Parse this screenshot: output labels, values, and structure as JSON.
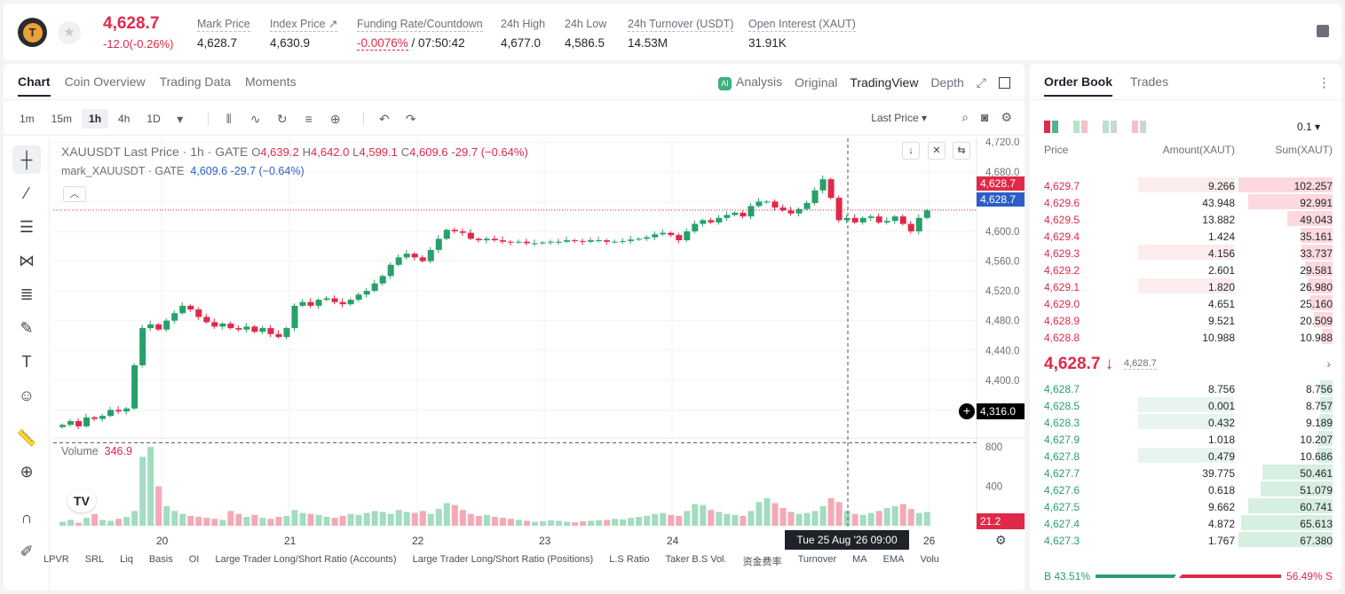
{
  "header": {
    "last_price": "4,628.7",
    "change": "-12.0(-0.26%)",
    "stats": [
      {
        "label": "Mark Price",
        "value": "4,628.7"
      },
      {
        "label": "Index Price ↗",
        "value": "4,630.9"
      },
      {
        "label": "Funding Rate/Countdown",
        "value": "-0.0076%",
        "value2": " / 07:50:42"
      },
      {
        "label": "24h High",
        "value": "4,677.0"
      },
      {
        "label": "24h Low",
        "value": "4,586.5"
      },
      {
        "label": "24h Turnover (USDT)",
        "value": "14.53M"
      },
      {
        "label": "Open Interest (XAUT)",
        "value": "31.91K"
      }
    ]
  },
  "chart_tabs": [
    "Chart",
    "Coin Overview",
    "Trading Data",
    "Moments"
  ],
  "view_tabs": {
    "analysis": "Analysis",
    "original": "Original",
    "tradingview": "TradingView",
    "depth": "Depth"
  },
  "timeframes": [
    "1m",
    "15m",
    "1h",
    "4h",
    "1D"
  ],
  "price_type": "Last Price",
  "legend": {
    "symbol": "XAUUSDT Last Price · 1h · GATE",
    "o_label": "O",
    "o": "4,639.2",
    "h_label": "H",
    "h": "4,642.0",
    "l_label": "L",
    "l": "4,599.1",
    "c_label": "C",
    "c": "4,609.6",
    "chg": "-29.7 (−0.64%)",
    "mark": "mark_XAUUSDT · GATE",
    "mark_vals": "4,609.6 -29.7 (−0.64%)"
  },
  "price_axis": [
    "4,720.0",
    "4,680.0",
    "4,640.0",
    "4,600.0",
    "4,560.0",
    "4,520.0",
    "4,480.0",
    "4,440.0",
    "4,400.0",
    "4,360.0"
  ],
  "tags": {
    "last": "4,628.7",
    "mark": "4,628.7",
    "cross": "4,316.0",
    "vol": "21.2"
  },
  "volume": {
    "label": "Volume",
    "value": "346.9",
    "axis": [
      "800",
      "400"
    ]
  },
  "x_axis": [
    "20",
    "21",
    "22",
    "23",
    "24",
    "26"
  ],
  "crosshair_time": "Tue 25 Aug '26   09:00",
  "indicators": [
    "LPVR",
    "SRL",
    "Liq",
    "Basis",
    "OI",
    "Large Trader Long/Short Ratio (Accounts)",
    "Large Trader Long/Short Ratio (Positions)",
    "L.S Ratio",
    "Taker B.S Vol.",
    "资金费率",
    "Turnover",
    "MA",
    "EMA",
    "Volu"
  ],
  "chart_data": {
    "type": "candlestick",
    "symbol": "XAUUSDT",
    "interval": "1h",
    "y_range": [
      4320,
      4725
    ],
    "close_path": [
      4340,
      4345,
      4338,
      4350,
      4348,
      4352,
      4360,
      4358,
      4362,
      4420,
      4470,
      4475,
      4468,
      4480,
      4490,
      4500,
      4495,
      4485,
      4478,
      4472,
      4476,
      4470,
      4468,
      4472,
      4465,
      4470,
      4462,
      4458,
      4470,
      4500,
      4505,
      4500,
      4508,
      4510,
      4505,
      4502,
      4508,
      4515,
      4520,
      4530,
      4540,
      4555,
      4565,
      4570,
      4565,
      4560,
      4575,
      4590,
      4602,
      4600,
      4598,
      4590,
      4588,
      4590,
      4588,
      4586,
      4585,
      4586,
      4584,
      4584,
      4585,
      4586,
      4586,
      4588,
      4587,
      4586,
      4588,
      4588,
      4586,
      4586,
      4587,
      4589,
      4590,
      4592,
      4596,
      4598,
      4595,
      4588,
      4600,
      4610,
      4615,
      4612,
      4618,
      4622,
      4625,
      4620,
      4634,
      4640,
      4640,
      4632,
      4628,
      4624,
      4630,
      4638,
      4655,
      4670,
      4645,
      4615,
      4618,
      4612,
      4618,
      4620,
      4612,
      4614,
      4620,
      4610,
      4600,
      4618,
      4628
    ],
    "volume_path": [
      40,
      60,
      30,
      80,
      120,
      60,
      50,
      70,
      90,
      150,
      700,
      800,
      400,
      200,
      150,
      120,
      100,
      90,
      80,
      70,
      60,
      150,
      120,
      90,
      110,
      80,
      70,
      90,
      100,
      160,
      130,
      120,
      110,
      90,
      80,
      100,
      120,
      110,
      130,
      150,
      140,
      120,
      160,
      140,
      130,
      150,
      120,
      170,
      230,
      210,
      160,
      120,
      100,
      110,
      90,
      80,
      70,
      60,
      50,
      40,
      45,
      55,
      50,
      40,
      35,
      45,
      50,
      55,
      60,
      70,
      65,
      80,
      90,
      100,
      120,
      130,
      110,
      100,
      150,
      220,
      210,
      160,
      140,
      120,
      110,
      100,
      150,
      240,
      280,
      230,
      180,
      140,
      120,
      130,
      150,
      200,
      280,
      240,
      150,
      120,
      110,
      130,
      150,
      180,
      200,
      220,
      170,
      130,
      140
    ]
  },
  "orderbook": {
    "tabs": [
      "Order Book",
      "Trades"
    ],
    "step": "0.1 ▾",
    "headers": {
      "price": "Price",
      "amount": "Amount(XAUT)",
      "sum": "Sum(XAUT)"
    },
    "asks": [
      {
        "p": "4,629.7",
        "a": "9.266",
        "s": "102.257",
        "ab": 0.22,
        "sb": 1.0
      },
      {
        "p": "4,629.6",
        "a": "43.948",
        "s": "92.991",
        "ab": 0,
        "sb": 0.9
      },
      {
        "p": "4,629.5",
        "a": "13.882",
        "s": "49.043",
        "ab": 0,
        "sb": 0.48
      },
      {
        "p": "4,629.4",
        "a": "1.424",
        "s": "35.161",
        "ab": 0,
        "sb": 0.34
      },
      {
        "p": "4,629.3",
        "a": "4.156",
        "s": "33.737",
        "ab": 0.22,
        "sb": 0.33
      },
      {
        "p": "4,629.2",
        "a": "2.601",
        "s": "29.581",
        "ab": 0,
        "sb": 0.29
      },
      {
        "p": "4,629.1",
        "a": "1.820",
        "s": "26.980",
        "ab": 0.22,
        "sb": 0.26
      },
      {
        "p": "4,629.0",
        "a": "4.651",
        "s": "25.160",
        "ab": 0,
        "sb": 0.24
      },
      {
        "p": "4,628.9",
        "a": "9.521",
        "s": "20.509",
        "ab": 0,
        "sb": 0.2
      },
      {
        "p": "4,628.8",
        "a": "10.988",
        "s": "10.988",
        "ab": 0,
        "sb": 0.11
      }
    ],
    "mid": "4,628.7 ↓",
    "mid_mark": "4,628.7",
    "bids": [
      {
        "p": "4,628.7",
        "a": "8.756",
        "s": "8.756",
        "ab": 0,
        "sb": 0.13
      },
      {
        "p": "4,628.5",
        "a": "0.001",
        "s": "8.757",
        "ab": 0.22,
        "sb": 0.13
      },
      {
        "p": "4,628.3",
        "a": "0.432",
        "s": "9.189",
        "ab": 0.22,
        "sb": 0.14
      },
      {
        "p": "4,627.9",
        "a": "1.018",
        "s": "10.207",
        "ab": 0,
        "sb": 0.15
      },
      {
        "p": "4,627.8",
        "a": "0.479",
        "s": "10.686",
        "ab": 0.22,
        "sb": 0.16
      },
      {
        "p": "4,627.7",
        "a": "39.775",
        "s": "50.461",
        "ab": 0,
        "sb": 0.75
      },
      {
        "p": "4,627.6",
        "a": "0.618",
        "s": "51.079",
        "ab": 0,
        "sb": 0.76
      },
      {
        "p": "4,627.5",
        "a": "9.662",
        "s": "60.741",
        "ab": 0,
        "sb": 0.9
      },
      {
        "p": "4,627.4",
        "a": "4.872",
        "s": "65.613",
        "ab": 0,
        "sb": 0.97
      },
      {
        "p": "4,627.3",
        "a": "1.767",
        "s": "67.380",
        "ab": 0,
        "sb": 1.0
      }
    ],
    "buy_ratio": "B 43.51%",
    "sell_ratio": "56.49% S",
    "buy_frac": 0.4351
  },
  "colors": {
    "up": "#27a06a",
    "down": "#e0294a",
    "up_light": "#e7f5ee",
    "down_light": "#fdeced"
  }
}
